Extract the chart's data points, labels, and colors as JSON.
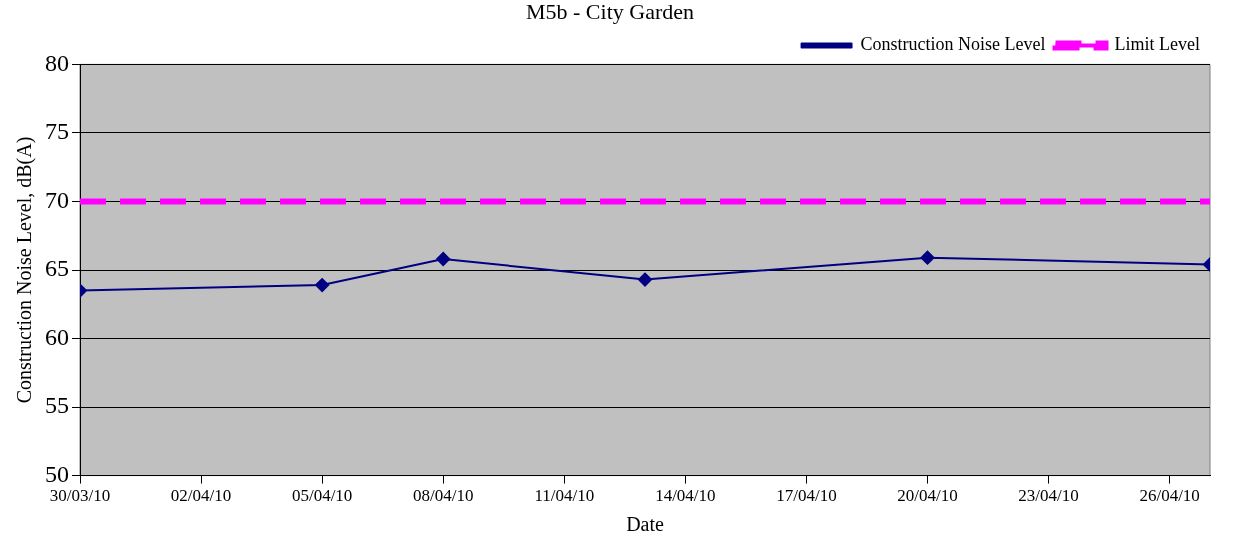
{
  "chart_data": {
    "type": "line",
    "title": "M5b - City Garden",
    "xlabel": "Date",
    "ylabel": "Construction Noise Level, dB(A)",
    "x": [
      "--03-30",
      "--04-05",
      "--04-08",
      "--04-13",
      "--04-20",
      "--04-27"
    ],
    "series": [
      {
        "name": "Construction Noise Level",
        "color": "#000080",
        "values": [
          63.5,
          63.9,
          65.8,
          64.3,
          65.9,
          65.4
        ]
      }
    ],
    "ref_lines": [
      {
        "axis": "y",
        "value": 70,
        "label": "Limit Level",
        "color": "#ff00ff",
        "line_style": "dashed"
      }
    ],
    "xlim": [
      "--03-30",
      "--04-27"
    ],
    "xticks": [
      {
        "value": "--03-30",
        "label": "30/03/10"
      },
      {
        "value": "--04-02",
        "label": "02/04/10"
      },
      {
        "value": "--04-05",
        "label": "05/04/10"
      },
      {
        "value": "--04-08",
        "label": "08/04/10"
      },
      {
        "value": "--04-11",
        "label": "11/04/10"
      },
      {
        "value": "--04-14",
        "label": "14/04/10"
      },
      {
        "value": "--04-17",
        "label": "17/04/10"
      },
      {
        "value": "--04-20",
        "label": "20/04/10"
      },
      {
        "value": "--04-23",
        "label": "23/04/10"
      },
      {
        "value": "--04-26",
        "label": "26/04/10"
      }
    ],
    "ylim": [
      50,
      80
    ],
    "yticks": [
      50,
      55,
      60,
      65,
      70,
      75,
      80
    ],
    "grid": "y",
    "legend": "top right",
    "marker": "diamond",
    "line_style": "solid"
  }
}
